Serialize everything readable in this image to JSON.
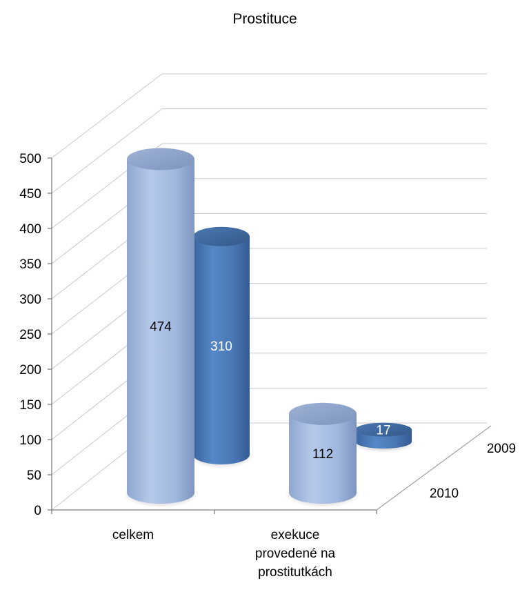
{
  "chart_data": {
    "type": "bar",
    "title": "Prostituce",
    "xlabel": "",
    "ylabel": "",
    "ylim": [
      0,
      500
    ],
    "yticks": [
      "0",
      "50",
      "100",
      "150",
      "200",
      "250",
      "300",
      "350",
      "400",
      "450",
      "500"
    ],
    "categories": [
      "celkem",
      "exekuce provedené na prostitutkách"
    ],
    "category_lines": [
      [
        "celkem"
      ],
      [
        "exekuce",
        "provedené na",
        "prostitutkách"
      ]
    ],
    "series": [
      {
        "name": "2010",
        "values": [
          474,
          112
        ],
        "color": "#95b3d7"
      },
      {
        "name": "2009",
        "values": [
          310,
          17
        ],
        "color": "#4f81bd"
      }
    ],
    "grid": true,
    "style": "3d-cylinder"
  }
}
